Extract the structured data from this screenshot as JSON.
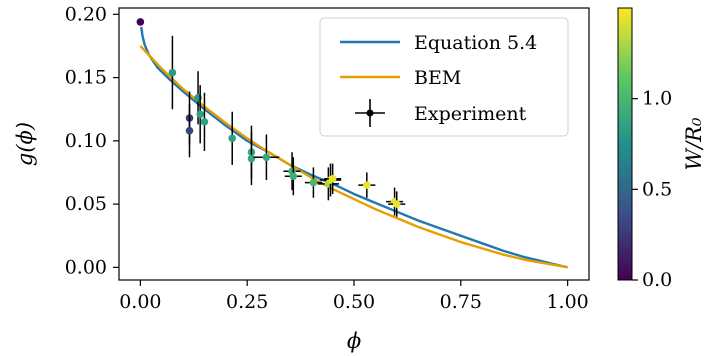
{
  "chart_data": {
    "type": "scatter",
    "xlabel": "ϕ",
    "ylabel": "g(ϕ)",
    "xlim": [
      -0.05,
      1.05
    ],
    "ylim": [
      -0.01,
      0.205
    ],
    "x_ticks": [
      0.0,
      0.25,
      0.5,
      0.75,
      1.0
    ],
    "x_tick_labels": [
      "0.00",
      "0.25",
      "0.50",
      "0.75",
      "1.00"
    ],
    "y_ticks": [
      0.0,
      0.05,
      0.1,
      0.15,
      0.2
    ],
    "y_tick_labels": [
      "0.00",
      "0.05",
      "0.10",
      "0.15",
      "0.20"
    ],
    "grid": false,
    "legend_position": "top-right",
    "colorbar": {
      "label": "W/R₀",
      "range": [
        0.0,
        1.5
      ],
      "ticks": [
        0.0,
        0.5,
        1.0
      ],
      "tick_labels": [
        "0.0",
        "0.5",
        "1.0"
      ],
      "colormap": "viridis"
    },
    "series": [
      {
        "name": "Equation 5.4",
        "kind": "line",
        "color": "#1f77b4",
        "x": [
          0.002,
          0.005,
          0.01,
          0.02,
          0.04,
          0.07,
          0.1,
          0.15,
          0.2,
          0.25,
          0.3,
          0.35,
          0.4,
          0.45,
          0.5,
          0.55,
          0.6,
          0.65,
          0.7,
          0.75,
          0.8,
          0.85,
          0.9,
          0.95,
          0.98,
          1.0
        ],
        "y": [
          0.19,
          0.183,
          0.176,
          0.168,
          0.158,
          0.148,
          0.139,
          0.125,
          0.112,
          0.1,
          0.091,
          0.081,
          0.073,
          0.066,
          0.058,
          0.051,
          0.044,
          0.037,
          0.031,
          0.025,
          0.019,
          0.013,
          0.008,
          0.004,
          0.0015,
          0.0
        ]
      },
      {
        "name": "BEM",
        "kind": "line",
        "color": "#e69f00",
        "x": [
          0.0,
          0.05,
          0.1,
          0.15,
          0.2,
          0.25,
          0.3,
          0.35,
          0.4,
          0.45,
          0.5,
          0.55,
          0.6,
          0.65,
          0.7,
          0.75,
          0.8,
          0.85,
          0.9,
          0.95,
          1.0
        ],
        "y": [
          0.175,
          0.157,
          0.141,
          0.127,
          0.114,
          0.102,
          0.091,
          0.081,
          0.071,
          0.062,
          0.054,
          0.046,
          0.039,
          0.032,
          0.026,
          0.02,
          0.015,
          0.01,
          0.006,
          0.003,
          0.0
        ]
      },
      {
        "name": "Experiment",
        "kind": "errorbar-scatter",
        "points": [
          {
            "x": 0.0,
            "y": 0.194,
            "c": 0.0
          },
          {
            "x": 0.075,
            "y": 0.154,
            "yerr": 0.029,
            "c": 0.8
          },
          {
            "x": 0.115,
            "y": 0.118,
            "yerr": 0.021,
            "c": 0.25
          },
          {
            "x": 0.115,
            "y": 0.108,
            "yerr": 0.021,
            "c": 0.3
          },
          {
            "x": 0.135,
            "y": 0.134,
            "yerr": 0.021,
            "c": 0.8
          },
          {
            "x": 0.14,
            "y": 0.121,
            "yerr": 0.023,
            "c": 0.85
          },
          {
            "x": 0.15,
            "y": 0.115,
            "yerr": 0.023,
            "c": 0.85
          },
          {
            "x": 0.215,
            "y": 0.102,
            "yerr": 0.021,
            "c": 0.85
          },
          {
            "x": 0.26,
            "y": 0.091,
            "yerr": 0.021,
            "c": 0.9
          },
          {
            "x": 0.26,
            "y": 0.086,
            "yerr": 0.021,
            "c": 0.9
          },
          {
            "x": 0.295,
            "y": 0.087,
            "yerr": 0.018,
            "xerr": 0.03,
            "c": 0.9
          },
          {
            "x": 0.355,
            "y": 0.076,
            "yerr": 0.015,
            "xerr": 0.02,
            "c": 0.95
          },
          {
            "x": 0.358,
            "y": 0.072,
            "yerr": 0.015,
            "xerr": 0.02,
            "c": 0.95
          },
          {
            "x": 0.405,
            "y": 0.067,
            "yerr": 0.012,
            "xerr": 0.02,
            "c": 1.0
          },
          {
            "x": 0.44,
            "y": 0.066,
            "yerr": 0.013,
            "xerr": 0.025,
            "c": 1.3
          },
          {
            "x": 0.445,
            "y": 0.069,
            "yerr": 0.013,
            "xerr": 0.025,
            "c": 1.4
          },
          {
            "x": 0.45,
            "y": 0.07,
            "yerr": 0.012,
            "xerr": 0.02,
            "c": 1.45
          },
          {
            "x": 0.53,
            "y": 0.065,
            "yerr": 0.01,
            "xerr": 0.02,
            "c": 1.45
          },
          {
            "x": 0.595,
            "y": 0.052,
            "yerr": 0.011,
            "xerr": 0.02,
            "c": 1.45
          },
          {
            "x": 0.6,
            "y": 0.05,
            "yerr": 0.01,
            "xerr": 0.02,
            "c": 1.45
          }
        ]
      }
    ]
  }
}
